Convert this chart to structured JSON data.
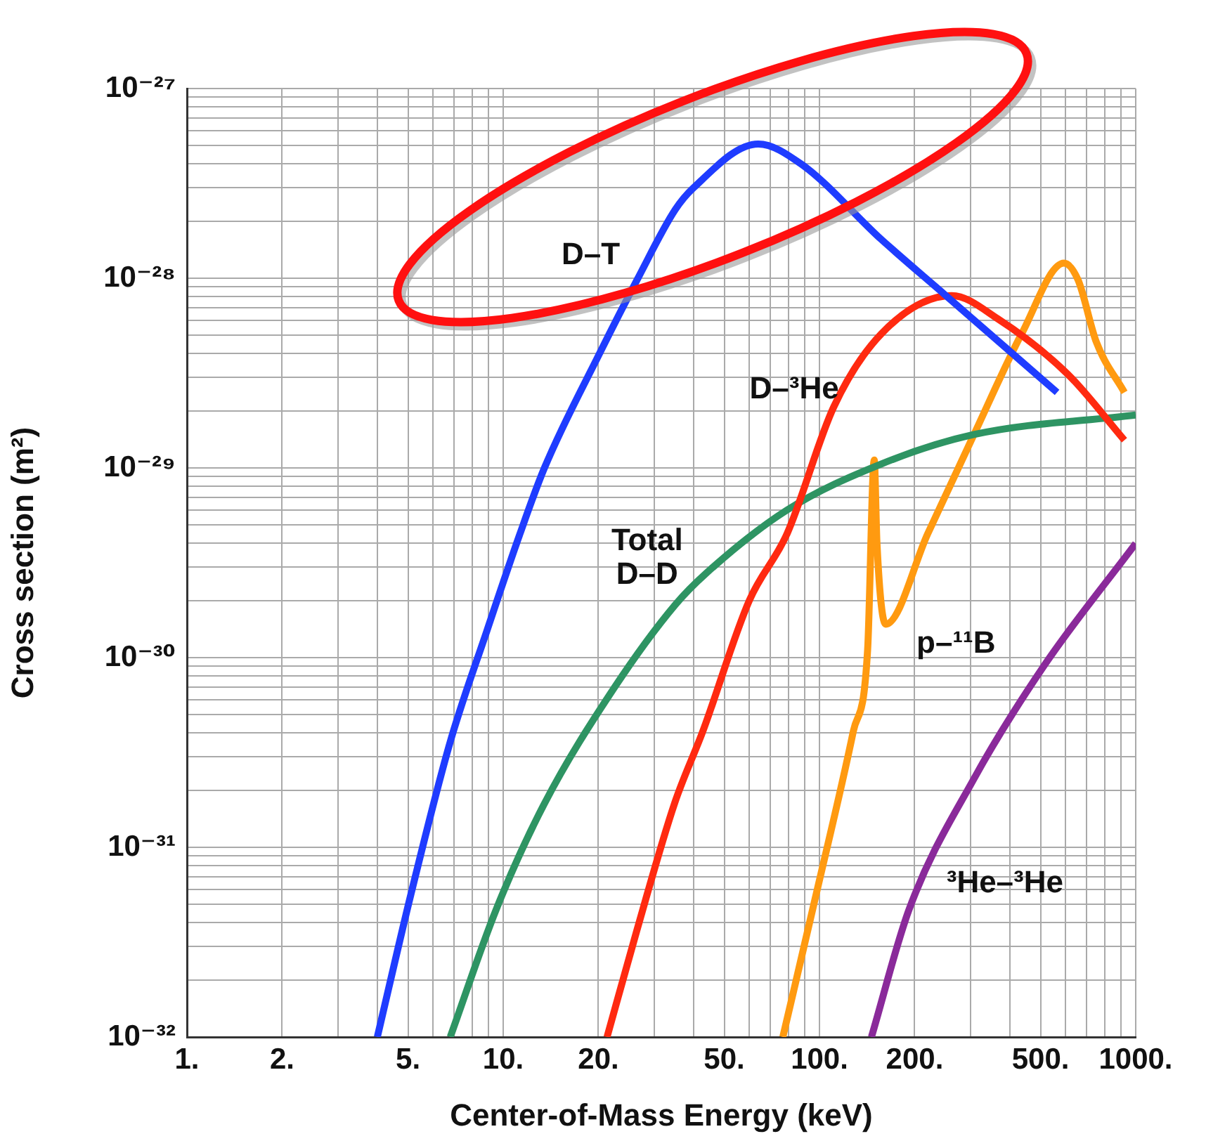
{
  "chart_data": {
    "type": "line",
    "xlabel": "Center-of-Mass Energy (keV)",
    "ylabel": "Cross section (m²)",
    "log": "xy",
    "grid": true,
    "legend": false,
    "marker": "none",
    "line_style": "solid",
    "xlim": [
      1,
      1000
    ],
    "ylim": [
      1e-32,
      1e-27
    ],
    "xticks": [
      {
        "value": 1,
        "label": "1."
      },
      {
        "value": 2,
        "label": "2."
      },
      {
        "value": 3,
        "label": null
      },
      {
        "value": 4,
        "label": null
      },
      {
        "value": 5,
        "label": "5."
      },
      {
        "value": 6,
        "label": null
      },
      {
        "value": 7,
        "label": null
      },
      {
        "value": 8,
        "label": null
      },
      {
        "value": 9,
        "label": null
      },
      {
        "value": 10,
        "label": "10."
      },
      {
        "value": 20,
        "label": "20."
      },
      {
        "value": 30,
        "label": null
      },
      {
        "value": 40,
        "label": null
      },
      {
        "value": 50,
        "label": "50."
      },
      {
        "value": 60,
        "label": null
      },
      {
        "value": 70,
        "label": null
      },
      {
        "value": 80,
        "label": null
      },
      {
        "value": 90,
        "label": null
      },
      {
        "value": 100,
        "label": "100."
      },
      {
        "value": 200,
        "label": "200."
      },
      {
        "value": 300,
        "label": null
      },
      {
        "value": 400,
        "label": null
      },
      {
        "value": 500,
        "label": "500."
      },
      {
        "value": 600,
        "label": null
      },
      {
        "value": 700,
        "label": null
      },
      {
        "value": 800,
        "label": null
      },
      {
        "value": 900,
        "label": null
      },
      {
        "value": 1000,
        "label": "1000."
      }
    ],
    "yticks": [
      {
        "value": 1e-32,
        "label": "10⁻³²"
      },
      {
        "value": 2e-32,
        "label": null
      },
      {
        "value": 3e-32,
        "label": null
      },
      {
        "value": 4e-32,
        "label": null
      },
      {
        "value": 5e-32,
        "label": null
      },
      {
        "value": 6e-32,
        "label": null
      },
      {
        "value": 7e-32,
        "label": null
      },
      {
        "value": 8e-32,
        "label": null
      },
      {
        "value": 9e-32,
        "label": null
      },
      {
        "value": 1e-31,
        "label": "10⁻³¹"
      },
      {
        "value": 2e-31,
        "label": null
      },
      {
        "value": 3e-31,
        "label": null
      },
      {
        "value": 4e-31,
        "label": null
      },
      {
        "value": 5e-31,
        "label": null
      },
      {
        "value": 6e-31,
        "label": null
      },
      {
        "value": 7e-31,
        "label": null
      },
      {
        "value": 8e-31,
        "label": null
      },
      {
        "value": 9e-31,
        "label": null
      },
      {
        "value": 1e-30,
        "label": "10⁻³⁰"
      },
      {
        "value": 2e-30,
        "label": null
      },
      {
        "value": 3e-30,
        "label": null
      },
      {
        "value": 4e-30,
        "label": null
      },
      {
        "value": 5e-30,
        "label": null
      },
      {
        "value": 6e-30,
        "label": null
      },
      {
        "value": 7e-30,
        "label": null
      },
      {
        "value": 8e-30,
        "label": null
      },
      {
        "value": 9e-30,
        "label": null
      },
      {
        "value": 1e-29,
        "label": "10⁻²⁹"
      },
      {
        "value": 2e-29,
        "label": null
      },
      {
        "value": 3e-29,
        "label": null
      },
      {
        "value": 4e-29,
        "label": null
      },
      {
        "value": 5e-29,
        "label": null
      },
      {
        "value": 6e-29,
        "label": null
      },
      {
        "value": 7e-29,
        "label": null
      },
      {
        "value": 8e-29,
        "label": null
      },
      {
        "value": 9e-29,
        "label": null
      },
      {
        "value": 1e-28,
        "label": "10⁻²⁸"
      },
      {
        "value": 2e-28,
        "label": null
      },
      {
        "value": 3e-28,
        "label": null
      },
      {
        "value": 4e-28,
        "label": null
      },
      {
        "value": 5e-28,
        "label": null
      },
      {
        "value": 6e-28,
        "label": null
      },
      {
        "value": 7e-28,
        "label": null
      },
      {
        "value": 8e-28,
        "label": null
      },
      {
        "value": 9e-28,
        "label": null
      },
      {
        "value": 1e-27,
        "label": "10⁻²⁷"
      }
    ],
    "series": [
      {
        "name": "D–T",
        "color": "#1f3cff",
        "x": [
          4.0,
          5.1,
          6.8,
          8.9,
          11.3,
          13.5,
          20.3,
          26.5,
          35,
          40,
          64,
          87.5,
          157,
          251,
          564
        ],
        "values": [
          1e-32,
          5.6e-32,
          3.6e-31,
          1.4e-30,
          4.5e-30,
          1e-29,
          4.1e-29,
          9.8e-29,
          2.3e-28,
          3e-28,
          5.1e-28,
          4e-28,
          1.6e-28,
          8.1e-29,
          2.5e-29
        ]
      },
      {
        "name": "D–³He",
        "color": "#ff2a10",
        "x": [
          21.3,
          26.4,
          34.8,
          42.8,
          60,
          79,
          111,
          157,
          262,
          367,
          612,
          921
        ],
        "values": [
          1e-32,
          3.6e-32,
          1.7e-31,
          4.1e-31,
          2e-30,
          4.5e-30,
          2.1e-29,
          5.1e-29,
          8.1e-29,
          6.1e-29,
          3.1e-29,
          1.4e-29
        ]
      },
      {
        "name": "Total D–D",
        "color": "#2e9463",
        "x": [
          6.8,
          9.5,
          13.5,
          22.4,
          35,
          44,
          79,
          157,
          308,
          1000
        ],
        "values": [
          1e-32,
          4.7e-32,
          1.7e-31,
          6.9e-31,
          1.9e-30,
          2.8e-30,
          6e-30,
          1.05e-29,
          1.5e-29,
          1.9e-29
        ]
      },
      {
        "name": "p–¹¹B",
        "color": "#ff9a10",
        "x": [
          76.6,
          97,
          128,
          142,
          149,
          152,
          162,
          220,
          308,
          436,
          593,
          657,
          751,
          921
        ],
        "values": [
          1e-32,
          5.4e-32,
          4.1e-31,
          1.1e-30,
          1.1e-29,
          4e-30,
          1.5e-30,
          4.5e-30,
          1.5e-29,
          5.1e-29,
          1.2e-28,
          9.8e-29,
          4.6e-29,
          2.5e-29
        ]
      },
      {
        "name": "³He–³He",
        "color": "#8a2a9a",
        "x": [
          146,
          192,
          308,
          514,
          1000
        ],
        "values": [
          1e-32,
          4.7e-32,
          2.3e-31,
          9.1e-31,
          4e-30
        ]
      }
    ]
  }
}
